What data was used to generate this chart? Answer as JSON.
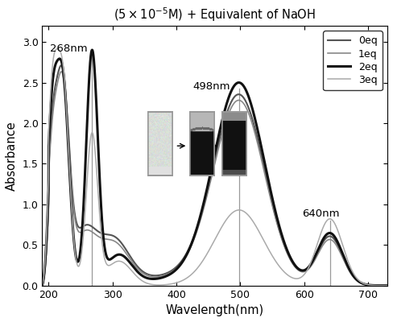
{
  "title": "(5x10$^{-5}$M) + Equivalent of NaOH",
  "xlabel": "Wavelength(nm)",
  "ylabel": "Absorbance",
  "xlim": [
    190,
    730
  ],
  "ylim": [
    0,
    3.2
  ],
  "yticks": [
    0.0,
    0.5,
    1.0,
    1.5,
    2.0,
    2.5,
    3.0
  ],
  "xticks": [
    200,
    300,
    400,
    500,
    600,
    700
  ],
  "series": [
    {
      "label": "0eq",
      "color": "#555555",
      "linewidth": 1.5
    },
    {
      "label": "1eq",
      "color": "#888888",
      "linewidth": 1.2
    },
    {
      "label": "2eq",
      "color": "#111111",
      "linewidth": 2.2
    },
    {
      "label": "3eq",
      "color": "#aaaaaa",
      "linewidth": 1.1
    }
  ],
  "background_color": "#ffffff"
}
